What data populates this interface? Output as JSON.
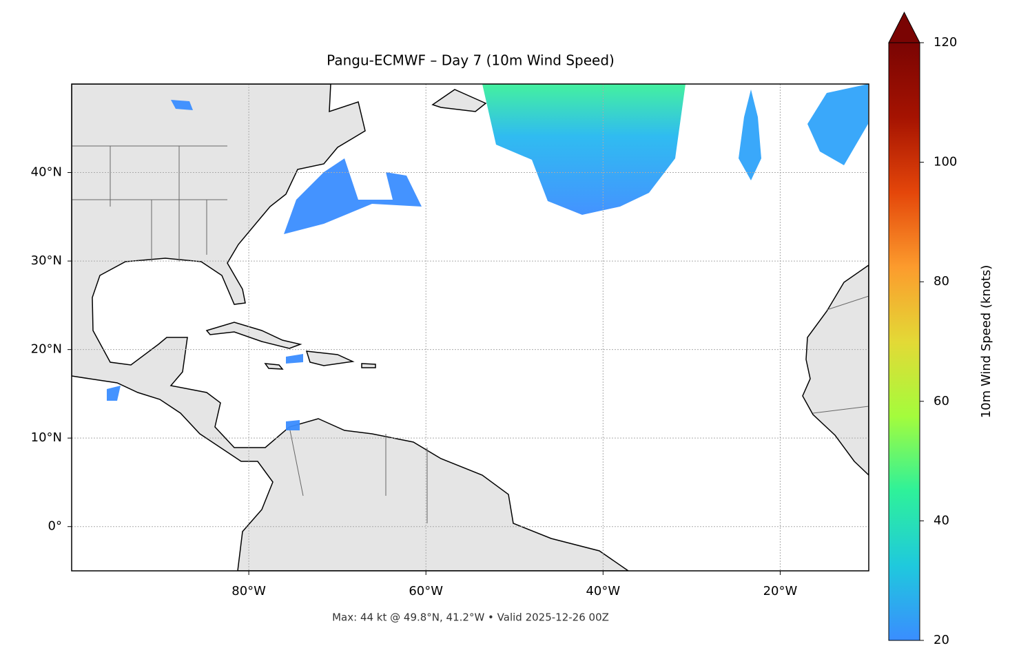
{
  "chart_data": {
    "type": "map",
    "title": "Pangu-ECMWF – Day 7 (10m Wind Speed)",
    "annotation": "Max: 44 kt @ 49.8°N, 41.2°W • Valid 2025-12-26 00Z",
    "xlim": [
      -100,
      -10
    ],
    "ylim": [
      -5,
      50
    ],
    "xticks": [
      {
        "value": -80,
        "label": "80°W"
      },
      {
        "value": -60,
        "label": "60°W"
      },
      {
        "value": -40,
        "label": "40°W"
      },
      {
        "value": -20,
        "label": "20°W"
      }
    ],
    "yticks": [
      {
        "value": 0,
        "label": "0°"
      },
      {
        "value": 10,
        "label": "10°N"
      },
      {
        "value": 20,
        "label": "20°N"
      },
      {
        "value": 30,
        "label": "30°N"
      },
      {
        "value": 40,
        "label": "40°N"
      }
    ],
    "grid": true,
    "colorbar": {
      "label": "10m Wind Speed (knots)",
      "lim": [
        20,
        120
      ],
      "ticks": [
        20,
        40,
        60,
        80,
        100,
        120
      ],
      "colors": [
        "#3a8dff",
        "#1fc9dd",
        "#2ef19a",
        "#a4fc3c",
        "#e3d936",
        "#fc9b2d",
        "#e4460a",
        "#a51301",
        "#7a0403"
      ]
    }
  }
}
